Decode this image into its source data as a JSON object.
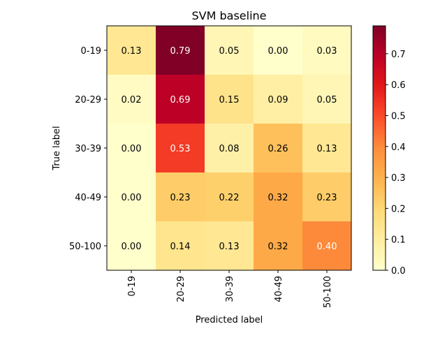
{
  "chart_data": {
    "type": "heatmap",
    "title": "SVM baseline",
    "xlabel": "Predicted label",
    "ylabel": "True label",
    "x_categories": [
      "0-19",
      "20-29",
      "30-39",
      "40-49",
      "50-100"
    ],
    "y_categories": [
      "0-19",
      "20-29",
      "30-39",
      "40-49",
      "50-100"
    ],
    "values": [
      [
        0.13,
        0.79,
        0.05,
        0.0,
        0.03
      ],
      [
        0.02,
        0.69,
        0.15,
        0.09,
        0.05
      ],
      [
        0.0,
        0.53,
        0.08,
        0.26,
        0.13
      ],
      [
        0.0,
        0.23,
        0.22,
        0.32,
        0.23
      ],
      [
        0.0,
        0.14,
        0.13,
        0.32,
        0.4
      ]
    ],
    "value_format": "0.00",
    "colormap": "YlOrRd",
    "colorbar": {
      "range": [
        0.0,
        0.79
      ],
      "ticks": [
        0.0,
        0.1,
        0.2,
        0.3,
        0.4,
        0.5,
        0.6,
        0.7
      ],
      "tick_labels": [
        "0.0",
        "0.1",
        "0.2",
        "0.3",
        "0.4",
        "0.5",
        "0.6",
        "0.7"
      ]
    },
    "grid": false
  }
}
